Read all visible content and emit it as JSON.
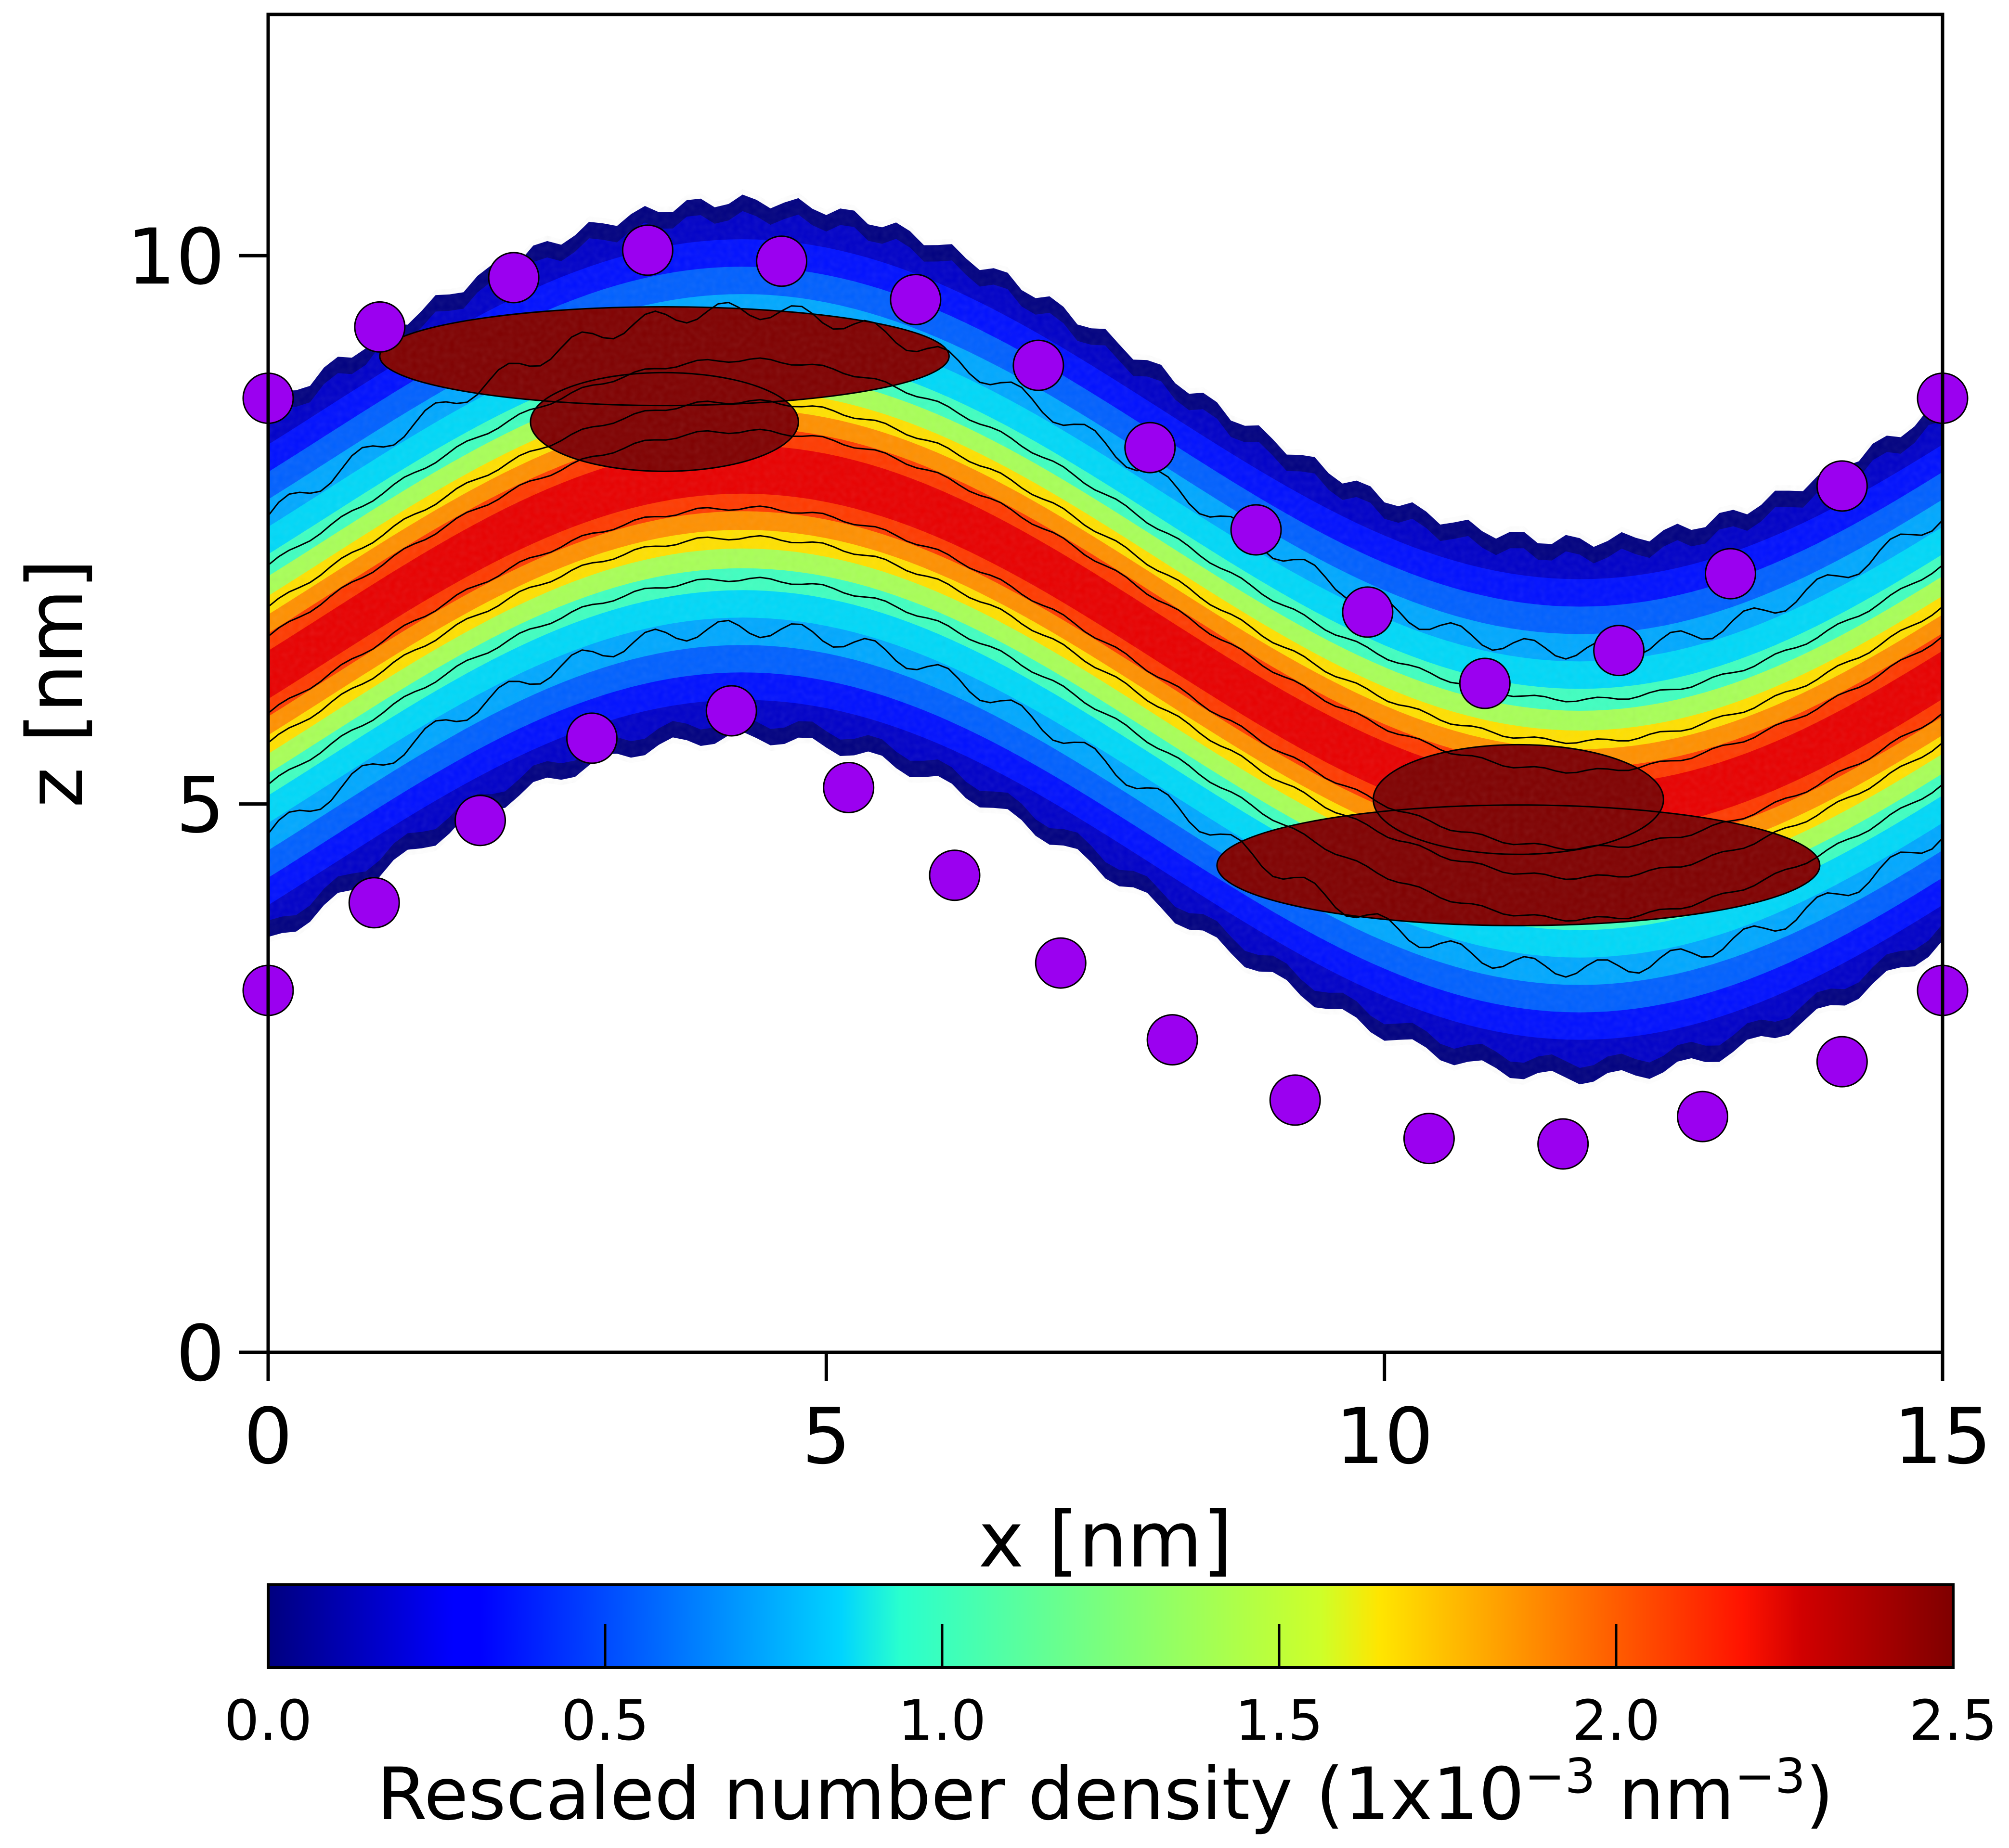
{
  "chart_data": {
    "type": "heatmap",
    "title": "",
    "xlabel": "x [nm]",
    "ylabel": "z [nm]",
    "xlim": [
      0,
      15
    ],
    "ylim": [
      0,
      12.2
    ],
    "xticks": [
      "0",
      "5",
      "10",
      "15"
    ],
    "yticks": [
      "0",
      "5",
      "10"
    ],
    "grid": false,
    "colormap": "jet",
    "colorbar": {
      "label_main": "Rescaled number density (1x10",
      "label_exp1": "−3",
      "label_mid": " nm",
      "label_exp2": "−3",
      "label_end": ")",
      "range": [
        0,
        2.5
      ],
      "ticks": [
        "0.0",
        "0.5",
        "1.0",
        "1.5",
        "2.0",
        "2.5"
      ]
    },
    "membrane_profile": {
      "description_values": "center z(x) = 6.5 + 1.55*sin(2*pi*(x - 0.5)/15); half-thickness ~2.1 nm",
      "center_offset": 6.5,
      "amplitude": 1.55,
      "period": 15,
      "phase_x": 0.5,
      "half_thickness": 2.15
    },
    "particles_upper": [
      {
        "x": 0.0,
        "z": 8.7
      },
      {
        "x": 1.0,
        "z": 9.35
      },
      {
        "x": 2.2,
        "z": 9.8
      },
      {
        "x": 3.4,
        "z": 10.05
      },
      {
        "x": 4.6,
        "z": 9.95
      },
      {
        "x": 5.8,
        "z": 9.6
      },
      {
        "x": 6.9,
        "z": 9.0
      },
      {
        "x": 7.9,
        "z": 8.25
      },
      {
        "x": 8.85,
        "z": 7.5
      },
      {
        "x": 9.85,
        "z": 6.75
      },
      {
        "x": 10.9,
        "z": 6.1
      },
      {
        "x": 12.1,
        "z": 6.4
      },
      {
        "x": 13.1,
        "z": 7.1
      },
      {
        "x": 14.1,
        "z": 7.9
      },
      {
        "x": 15.0,
        "z": 8.7
      }
    ],
    "particles_lower": [
      {
        "x": 0.0,
        "z": 3.3
      },
      {
        "x": 0.95,
        "z": 4.1
      },
      {
        "x": 1.9,
        "z": 4.85
      },
      {
        "x": 2.9,
        "z": 5.6
      },
      {
        "x": 4.15,
        "z": 5.85
      },
      {
        "x": 5.2,
        "z": 5.15
      },
      {
        "x": 6.15,
        "z": 4.35
      },
      {
        "x": 7.1,
        "z": 3.55
      },
      {
        "x": 8.1,
        "z": 2.85
      },
      {
        "x": 9.2,
        "z": 2.3
      },
      {
        "x": 10.4,
        "z": 1.95
      },
      {
        "x": 11.6,
        "z": 1.9
      },
      {
        "x": 12.85,
        "z": 2.15
      },
      {
        "x": 14.1,
        "z": 2.65
      },
      {
        "x": 15.0,
        "z": 3.3
      }
    ],
    "particle_color": "#9b00f0",
    "contour_color": "#000000"
  }
}
